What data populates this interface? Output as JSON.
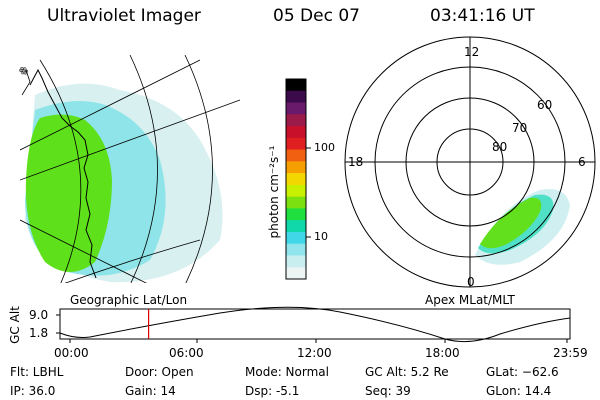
{
  "header": {
    "instrument": "Ultraviolet Imager",
    "date": "05 Dec 07",
    "time": "03:41:16 UT"
  },
  "left_panel": {
    "label": "Geographic Lat/Lon"
  },
  "colorbar": {
    "unit_label": "photon cm⁻²s⁻¹",
    "ticks": [
      "100",
      "10"
    ],
    "colors": [
      "#000000",
      "#3a0a4a",
      "#6a1a6a",
      "#9a1a4a",
      "#c8102a",
      "#e02020",
      "#f06010",
      "#f5a000",
      "#f2d800",
      "#c8f000",
      "#7ce010",
      "#20e040",
      "#10d8a8",
      "#40d8e8",
      "#90e4ec",
      "#c8eef0",
      "#ecf4f4"
    ]
  },
  "right_panel": {
    "label": "Apex MLat/MLT",
    "mlt_labels": [
      "12",
      "18",
      "6",
      "0"
    ],
    "mlat_labels": [
      "60",
      "70",
      "80"
    ]
  },
  "altitude_strip": {
    "axis_title": "GC Alt",
    "y_ticks": [
      "9.0",
      "1.8"
    ],
    "x_ticks": [
      "00:00",
      "06:00",
      "12:00",
      "18:00",
      "23:59"
    ],
    "current_time_marker_fraction": 0.1582,
    "marker_color": "#e00000"
  },
  "info": {
    "flt": "Flt: LBHL",
    "ip": "IP: 36.0",
    "door": "Door: Open",
    "gain": "Gain: 14",
    "mode": "Mode: Normal",
    "dsp": "Dsp:     -5.1",
    "gc_alt": "GC Alt: 5.2 Re",
    "seq": "Seq: 39",
    "glat": "GLat: −62.6",
    "glon": "GLon:  14.4"
  }
}
